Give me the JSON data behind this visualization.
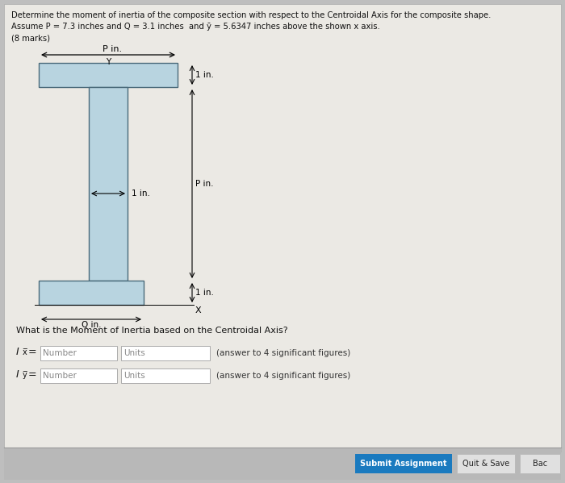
{
  "title_line1": "Determine the moment of inertia of the composite section with respect to the Centroidal Axis for the composite shape.",
  "title_line2": "Assume P = 7.3 inches and Q = 3.1 inches  and ȳ = 5.6347 inches above the shown x axis.",
  "title_line3": "(8 marks)",
  "shape_fill": "#b8d4e0",
  "shape_edge": "#4a6a7a",
  "shape_fill_dark": "#8aabbb",
  "question_text": "What is the Moment of Inertia based on the Centroidal Axis?",
  "answer_note": "(answer to 4 significant figures)",
  "submit_btn_color": "#1a7abf",
  "submit_btn_text": "Submit Assignment",
  "quit_btn_text": "Quit & Save",
  "back_btn_text": "Bac",
  "page_bg": "#ebe9e4",
  "bottom_bar_bg": "#b0b0b0",
  "page_border": "#cccccc"
}
